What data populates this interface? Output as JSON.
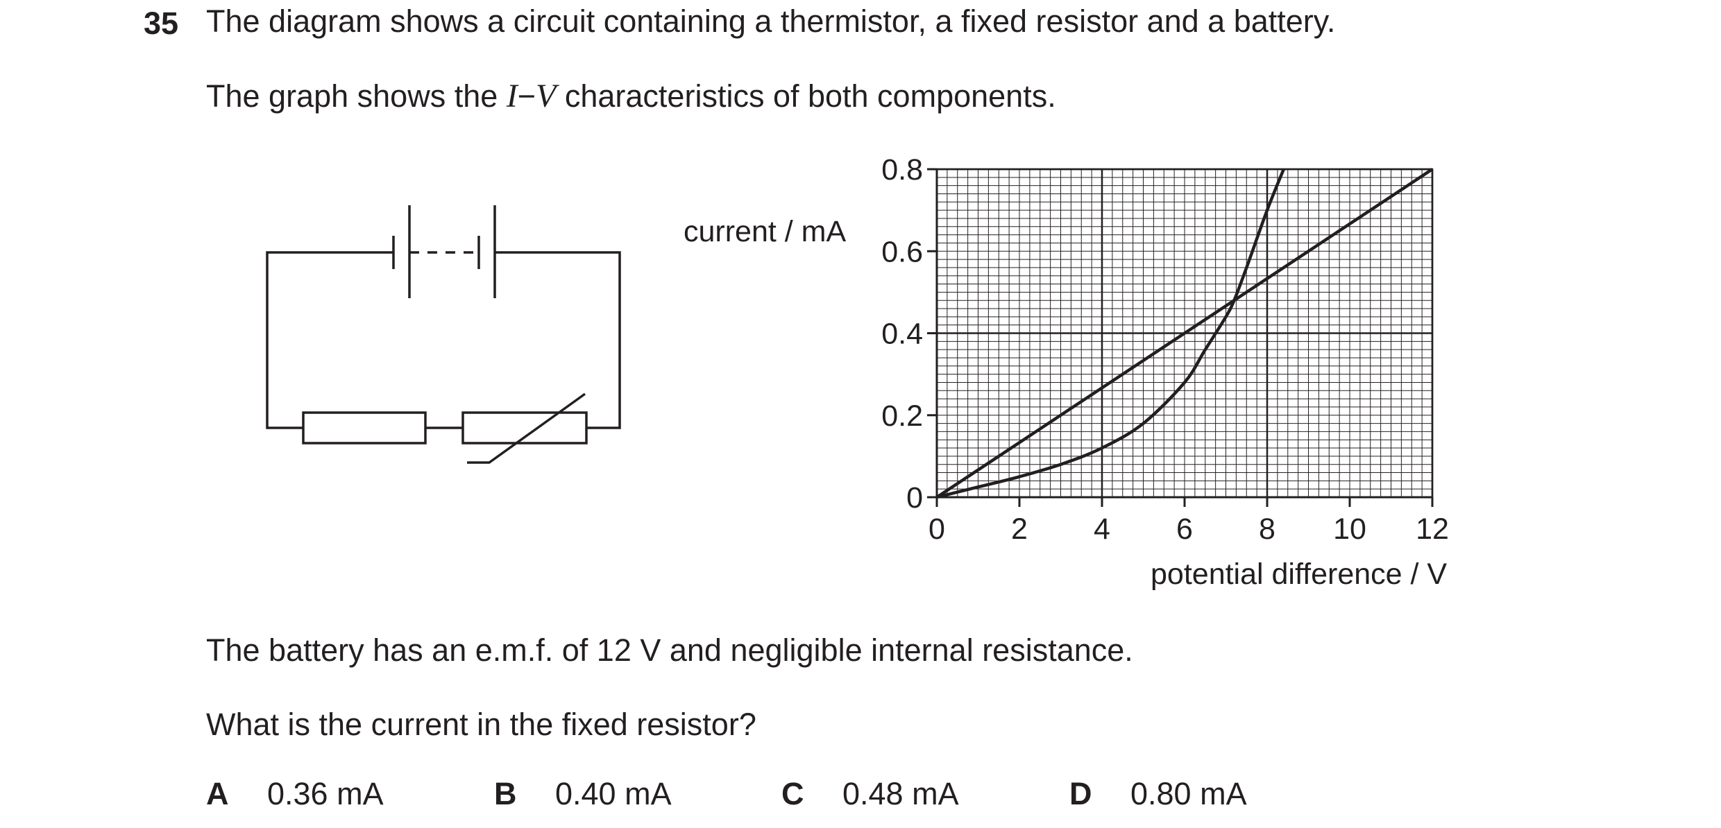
{
  "question": {
    "number": "35",
    "line1": "The diagram shows a circuit containing a thermistor, a fixed resistor and a battery.",
    "line2_prefix": "The graph shows the ",
    "line2_I": "I",
    "line2_dash": "−",
    "line2_V": "V",
    "line2_suffix": " characteristics of both components.",
    "line3": "The battery has an e.m.f. of 12 V and negligible internal resistance.",
    "line4": "What is the current in the fixed resistor?"
  },
  "options": [
    {
      "letter": "A",
      "value": "0.36 mA"
    },
    {
      "letter": "B",
      "value": "0.40 mA"
    },
    {
      "letter": "C",
      "value": "0.48 mA"
    },
    {
      "letter": "D",
      "value": "0.80 mA"
    }
  ],
  "chart_data": {
    "type": "line",
    "xlabel": "potential difference / V",
    "ylabel": "current / mA",
    "xlim": [
      0,
      12
    ],
    "ylim": [
      0,
      0.8
    ],
    "x_ticks": [
      "0",
      "2",
      "4",
      "6",
      "8",
      "10",
      "12"
    ],
    "y_ticks": [
      "0",
      "0.2",
      "0.4",
      "0.6",
      "0.8"
    ],
    "grid": true,
    "series": [
      {
        "x": [
          0,
          12
        ],
        "y": [
          0,
          0.8
        ]
      },
      {
        "x": [
          0,
          1,
          2,
          3,
          4,
          5,
          6,
          6.5,
          7,
          7.2,
          7.5,
          8,
          8.4
        ],
        "y": [
          0,
          0.025,
          0.05,
          0.08,
          0.12,
          0.18,
          0.28,
          0.36,
          0.44,
          0.48,
          0.56,
          0.7,
          0.8
        ]
      }
    ]
  }
}
